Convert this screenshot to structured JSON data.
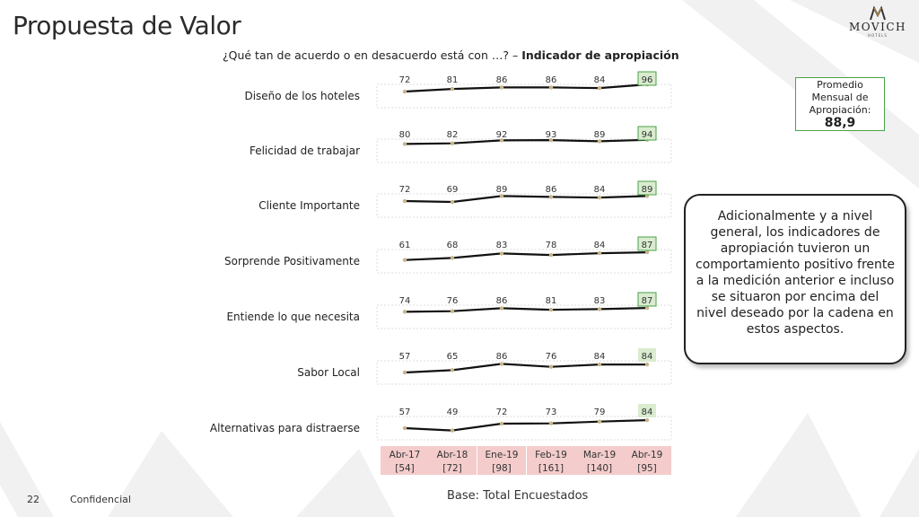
{
  "title": "Propuesta de Valor",
  "brand": {
    "name": "MOVICH",
    "sub": "HOTELS"
  },
  "question": {
    "prefix": "¿Qué tan de acuerdo o en desacuerdo está con …? – ",
    "bold": "Indicador de apropiación"
  },
  "promedio": {
    "label": "Promedio Mensual de Apropiación:",
    "value": "88,9"
  },
  "callout": "Adicionalmente y a nivel general, los indicadores de apropiación tuvieron un comportamiento positivo frente a la medición anterior e incluso se situaron por encima del nivel deseado por la cadena en estos aspectos.",
  "footer": {
    "page": "22",
    "confidential": "Confidencial",
    "base": "Base: Total Encuestados"
  },
  "colors": {
    "highlight_strong": "#4aa24a",
    "highlight_fill": "#d9eccf",
    "header_fill": "#f4cccc",
    "line": "#111111",
    "marker": "#c8b48a"
  },
  "chart_data": {
    "type": "line",
    "categories": [
      "Abr-17",
      "Abr-18",
      "Ene-19",
      "Feb-19",
      "Mar-19",
      "Abr-19"
    ],
    "bases": [
      "[54]",
      "[72]",
      "[98]",
      "[161]",
      "[140]",
      "[95]"
    ],
    "series": [
      {
        "name": "Diseño de los hoteles",
        "values": [
          72,
          81,
          86,
          86,
          84,
          96
        ],
        "last_box": "strong"
      },
      {
        "name": "Felicidad de trabajar",
        "values": [
          80,
          82,
          92,
          93,
          89,
          94
        ],
        "last_box": "strong"
      },
      {
        "name": "Cliente Importante",
        "values": [
          72,
          69,
          89,
          86,
          84,
          89
        ],
        "last_box": "strong"
      },
      {
        "name": "Sorprende Positivamente",
        "values": [
          61,
          68,
          83,
          78,
          84,
          87
        ],
        "last_box": "strong"
      },
      {
        "name": "Entiende lo que necesita",
        "values": [
          74,
          76,
          86,
          81,
          83,
          87
        ],
        "last_box": "strong"
      },
      {
        "name": "Sabor Local",
        "values": [
          57,
          65,
          86,
          76,
          84,
          84
        ],
        "last_box": "light"
      },
      {
        "name": "Alternativas para distraerse",
        "values": [
          57,
          49,
          72,
          73,
          79,
          84
        ],
        "last_box": "light"
      }
    ]
  }
}
